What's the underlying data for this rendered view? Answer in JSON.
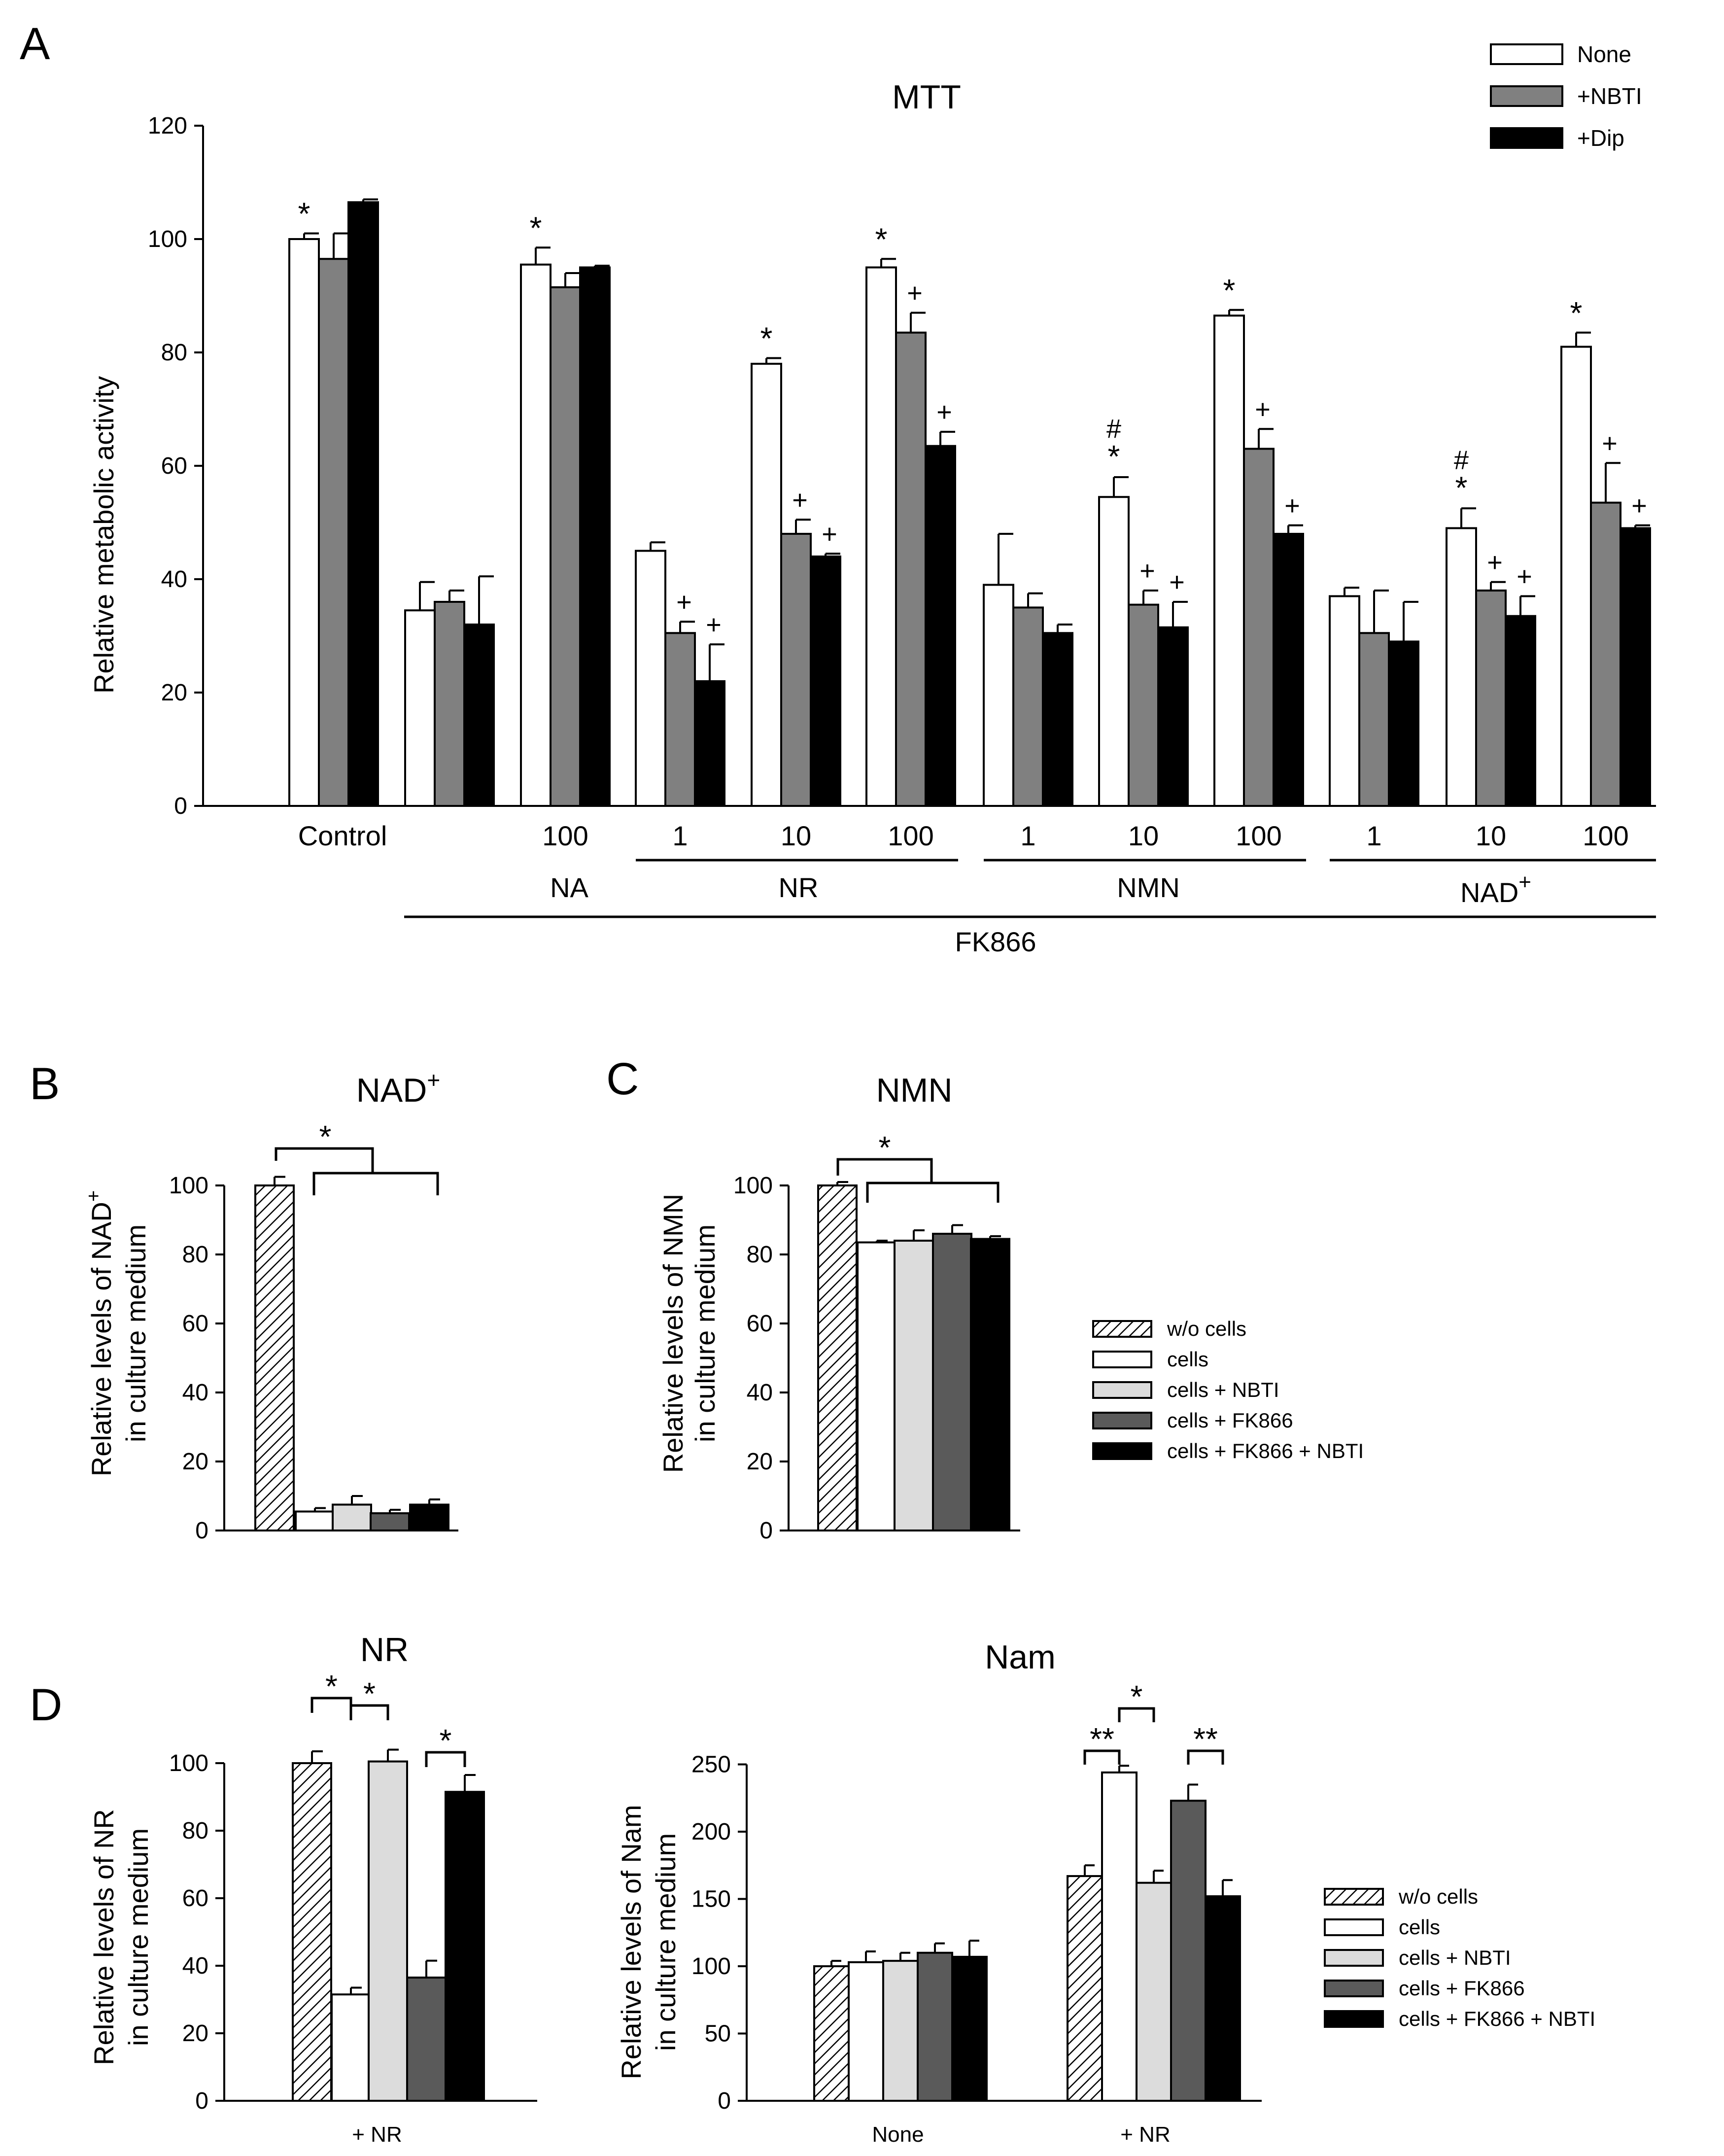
{
  "colors": {
    "none": "#ffffff",
    "nbti_mtt": "#808080",
    "dip": "#000000",
    "cells": "#ffffff",
    "cells_nbti": "#dcdcdc",
    "cells_fk866": "#5a5a5a",
    "cells_fk866_nbti": "#000000"
  },
  "panels": {
    "A": {
      "letter": "A"
    },
    "B": {
      "letter": "B"
    },
    "C": {
      "letter": "C"
    },
    "D": {
      "letter": "D"
    }
  },
  "legendA": [
    {
      "label": "None",
      "color": "#ffffff"
    },
    {
      "label": "+NBTI",
      "color": "#808080"
    },
    {
      "label": "+Dip",
      "color": "#000000"
    }
  ],
  "legendB": [
    {
      "label": "w/o cells",
      "pattern": "hatch"
    },
    {
      "label": "cells",
      "color": "#ffffff"
    },
    {
      "label": "cells + NBTI",
      "color": "#dcdcdc"
    },
    {
      "label": "cells + FK866",
      "color": "#5a5a5a"
    },
    {
      "label": "cells + FK866 + NBTI",
      "color": "#000000"
    }
  ],
  "chart_data": [
    {
      "id": "A",
      "type": "bar",
      "title": "MTT",
      "ylabel": "Relative metabolic activity",
      "ylim": [
        0,
        120
      ],
      "yticks": [
        0,
        20,
        40,
        60,
        80,
        100,
        120
      ],
      "categories": [
        "Control",
        "FK866",
        "100",
        "1",
        "10",
        "100",
        "1",
        "10",
        "100",
        "1",
        "10",
        "100"
      ],
      "visible_category_labels": [
        "Control",
        "",
        "100",
        "1",
        "10",
        "100",
        "1",
        "10",
        "100",
        "1",
        "10",
        "100"
      ],
      "group_labels": [
        "NA",
        "NR",
        "NMN",
        "NAD",
        "FK866"
      ],
      "group_label_superscripts": {
        "NAD": "+"
      },
      "series": [
        {
          "name": "None",
          "values": [
            100,
            34.5,
            95.5,
            45,
            78,
            95,
            39,
            54.5,
            86.5,
            37,
            49,
            81
          ],
          "errors": [
            1,
            5,
            3,
            1.5,
            1,
            1.5,
            9,
            3.5,
            1,
            1.5,
            3.5,
            2.5
          ],
          "annotations": [
            "*",
            "",
            "*",
            "",
            "*",
            "*",
            "",
            "#*",
            "*",
            "",
            "#*",
            "*"
          ]
        },
        {
          "name": "+NBTI",
          "values": [
            96.5,
            36,
            91.5,
            30.5,
            48,
            83.5,
            35,
            35.5,
            63,
            30.5,
            38,
            53.5
          ],
          "errors": [
            4.5,
            2,
            2.5,
            2,
            2.5,
            3.5,
            2.5,
            2.5,
            3.5,
            7.5,
            1.5,
            7
          ],
          "annotations": [
            "",
            "",
            "",
            "+",
            "+",
            "+",
            "",
            "+",
            "+",
            "",
            "+",
            "+"
          ]
        },
        {
          "name": "+Dip",
          "values": [
            106.5,
            32,
            95,
            22,
            44,
            63.5,
            30.5,
            31.5,
            48,
            29,
            33.5,
            49
          ],
          "errors": [
            0.5,
            8.5,
            0.3,
            6.5,
            0.5,
            2.5,
            1.5,
            4.5,
            1.5,
            7,
            3.5,
            0.5
          ],
          "annotations": [
            "",
            "",
            "",
            "+",
            "+",
            "+",
            "",
            "+",
            "+",
            "",
            "+",
            "+"
          ]
        }
      ]
    },
    {
      "id": "B",
      "type": "bar",
      "title": "NAD",
      "title_superscript": "+",
      "ylabel_line1": "Relative levels of NAD",
      "ylabel_line1_superscript": "+",
      "ylabel_line2": "in culture medium",
      "ylim": [
        0,
        110
      ],
      "yticks": [
        0,
        20,
        40,
        60,
        80,
        100
      ],
      "categories": [
        "w/o cells",
        "cells",
        "cells + NBTI",
        "cells + FK866",
        "cells + FK866 + NBTI"
      ],
      "values": [
        100,
        5.5,
        7.5,
        5,
        7.5
      ],
      "errors": [
        2.5,
        1,
        2.5,
        1,
        1.5
      ],
      "significance": "*"
    },
    {
      "id": "C",
      "type": "bar",
      "title": "NMN",
      "ylabel_line1": "Relative levels of NMN",
      "ylabel_line2": "in culture medium",
      "ylim": [
        0,
        110
      ],
      "yticks": [
        0,
        20,
        40,
        60,
        80,
        100
      ],
      "categories": [
        "w/o cells",
        "cells",
        "cells + NBTI",
        "cells + FK866",
        "cells + FK866 + NBTI"
      ],
      "values": [
        100,
        83.5,
        84,
        86,
        84.5
      ],
      "errors": [
        1,
        0.5,
        3,
        2.5,
        0.8
      ],
      "significance": "*"
    },
    {
      "id": "D-NR",
      "type": "bar",
      "title": "NR",
      "ylabel_line1": "Relative levels of NR",
      "ylabel_line2": "in culture medium",
      "ylim": [
        0,
        110
      ],
      "yticks": [
        0,
        20,
        40,
        60,
        80,
        100
      ],
      "xlabel": "+ NR",
      "categories": [
        "w/o cells",
        "cells",
        "cells + NBTI",
        "cells + FK866",
        "cells + FK866 + NBTI"
      ],
      "values": [
        100,
        31.5,
        100.5,
        36.5,
        91.5
      ],
      "errors": [
        3.5,
        2,
        3.5,
        5,
        5
      ],
      "brackets": [
        {
          "from": 0,
          "to": 1,
          "label": "*"
        },
        {
          "from": 1,
          "to": 2,
          "label": "*"
        },
        {
          "from": 3,
          "to": 4,
          "label": "*"
        }
      ]
    },
    {
      "id": "D-Nam",
      "type": "bar",
      "title": "Nam",
      "ylabel_line1": "Relative levels of Nam",
      "ylabel_line2": "in culture medium",
      "ylim": [
        0,
        270
      ],
      "yticks": [
        0,
        50,
        100,
        150,
        200,
        250
      ],
      "groups": [
        "None",
        "+ NR"
      ],
      "categories": [
        "w/o cells",
        "cells",
        "cells + NBTI",
        "cells + FK866",
        "cells + FK866 + NBTI"
      ],
      "series": [
        {
          "group": "None",
          "values": [
            100,
            103,
            104,
            110,
            107
          ],
          "errors": [
            4,
            8,
            6,
            7,
            12
          ]
        },
        {
          "group": "+ NR",
          "values": [
            167,
            244,
            162,
            223,
            152
          ],
          "errors": [
            8,
            5,
            9,
            12,
            12
          ]
        }
      ],
      "brackets": [
        {
          "from": 0,
          "to": 1,
          "label": "**"
        },
        {
          "from": 1,
          "to": 2,
          "label": "*"
        },
        {
          "from": 3,
          "to": 4,
          "label": "**"
        }
      ]
    }
  ]
}
